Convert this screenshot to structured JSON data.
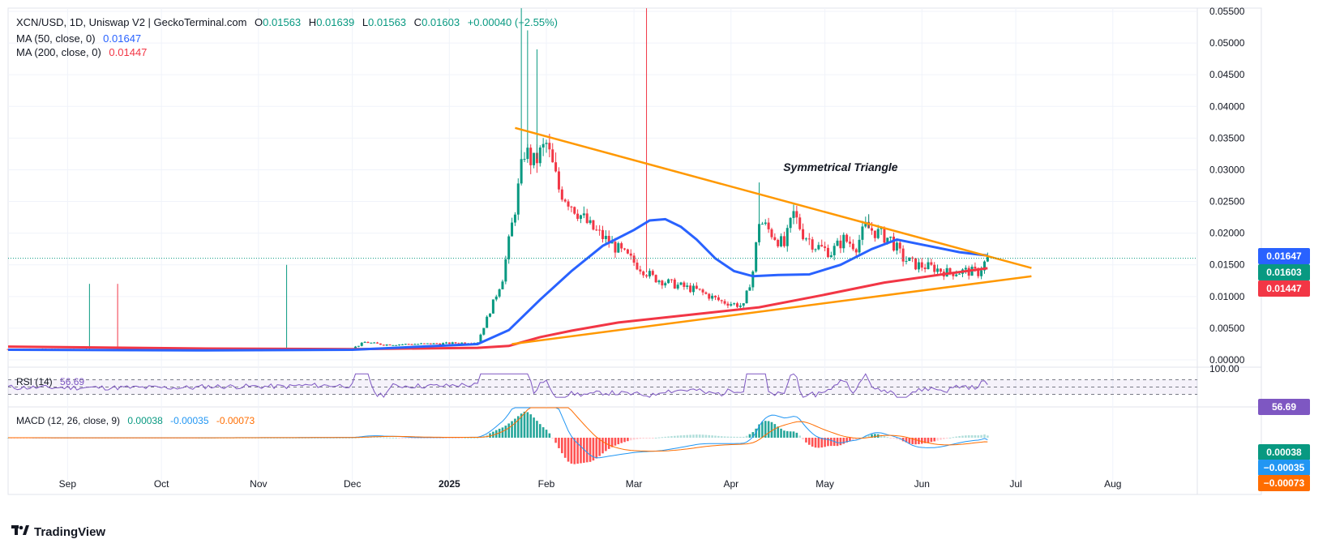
{
  "header": {
    "symbol": "XCN/USD, 1D, Uniswap V2 | GeckoTerminal.com",
    "o_label": "O",
    "o": "0.01563",
    "h_label": "H",
    "h": "0.01639",
    "l_label": "L",
    "l": "0.01563",
    "c_label": "C",
    "c": "0.01603",
    "change": "+0.00040 (+2.55%)",
    "ma50_label": "MA (50, close, 0)",
    "ma50_value": "0.01647",
    "ma200_label": "MA (200, close, 0)",
    "ma200_value": "0.01447",
    "rsi_label": "RSI (14)",
    "rsi_value": "56.69",
    "macd_label": "MACD (12, 26, close, 9)",
    "macd_hist": "0.00038",
    "macd_line": "-0.00035",
    "macd_signal": "-0.00073"
  },
  "badges": {
    "ma50": "0.01647",
    "close": "0.01603",
    "ma200": "0.01447",
    "rsi": "56.69",
    "macd_hist": "0.00038",
    "macd_line": "−0.00035",
    "macd_signal": "−0.00073",
    "rsi_top": "100.00"
  },
  "annotation": "Symmetrical Triangle",
  "brand": "TradingView",
  "colors": {
    "up": "#089981",
    "down": "#f23645",
    "ma50": "#2962ff",
    "ma200": "#f23645",
    "trendline": "#ff9800",
    "rsi": "#7e57c2",
    "macd": "#2196f3",
    "signal": "#ff6d00",
    "hist_up": "#26a69a",
    "hist_up_light": "#b2dfdb",
    "hist_down": "#ff5252",
    "hist_down_light": "#ffcdd2"
  },
  "chart_data": {
    "type": "candlestick",
    "title": "XCN/USD, 1D, Uniswap V2",
    "y_ticks": [
      "0.05500",
      "0.05000",
      "0.04500",
      "0.04000",
      "0.03500",
      "0.03000",
      "0.02500",
      "0.02000",
      "0.01500",
      "0.01000",
      "0.00500",
      "0.00000"
    ],
    "y_tick_values": [
      0.055,
      0.05,
      0.045,
      0.04,
      0.035,
      0.03,
      0.025,
      0.02,
      0.015,
      0.01,
      0.005,
      0.0
    ],
    "x_ticks": [
      {
        "label": "Sep",
        "day": 19
      },
      {
        "label": "Oct",
        "day": 49
      },
      {
        "label": "Nov",
        "day": 80
      },
      {
        "label": "Dec",
        "day": 110
      },
      {
        "label": "2025",
        "day": 141
      },
      {
        "label": "Feb",
        "day": 172
      },
      {
        "label": "Mar",
        "day": 200
      },
      {
        "label": "Apr",
        "day": 231
      },
      {
        "label": "May",
        "day": 261
      },
      {
        "label": "Jun",
        "day": 292
      },
      {
        "label": "Jul",
        "day": 322
      },
      {
        "label": "Aug",
        "day": 353
      }
    ],
    "x_domain": [
      0,
      380
    ],
    "y_domain": [
      0,
      0.0555
    ],
    "price_keypoints": [
      [
        0,
        0.0017
      ],
      [
        30,
        0.0016
      ],
      [
        60,
        0.0015
      ],
      [
        90,
        0.0016
      ],
      [
        110,
        0.0018
      ],
      [
        114,
        0.0028
      ],
      [
        120,
        0.0024
      ],
      [
        140,
        0.0026
      ],
      [
        150,
        0.0028
      ],
      [
        155,
        0.009
      ],
      [
        158,
        0.013
      ],
      [
        162,
        0.024
      ],
      [
        165,
        0.033
      ],
      [
        168,
        0.031
      ],
      [
        172,
        0.034
      ],
      [
        176,
        0.027
      ],
      [
        181,
        0.024
      ],
      [
        186,
        0.021
      ],
      [
        191,
        0.019
      ],
      [
        196,
        0.017
      ],
      [
        201,
        0.015
      ],
      [
        206,
        0.013
      ],
      [
        212,
        0.012
      ],
      [
        220,
        0.011
      ],
      [
        228,
        0.0092
      ],
      [
        235,
        0.0085
      ],
      [
        238,
        0.014
      ],
      [
        240,
        0.022
      ],
      [
        244,
        0.02
      ],
      [
        248,
        0.018
      ],
      [
        251,
        0.023
      ],
      [
        254,
        0.02
      ],
      [
        258,
        0.018
      ],
      [
        263,
        0.017
      ],
      [
        267,
        0.019
      ],
      [
        271,
        0.018
      ],
      [
        274,
        0.021
      ],
      [
        278,
        0.02
      ],
      [
        282,
        0.019
      ],
      [
        286,
        0.016
      ],
      [
        290,
        0.015
      ],
      [
        296,
        0.0145
      ],
      [
        300,
        0.0138
      ],
      [
        306,
        0.014
      ],
      [
        310,
        0.0138
      ],
      [
        313,
        0.01603
      ]
    ],
    "spikes": [
      [
        26,
        0.012
      ],
      [
        35,
        0.012
      ],
      [
        89,
        0.015
      ],
      [
        164,
        0.0555
      ],
      [
        166,
        0.052
      ],
      [
        169,
        0.049
      ],
      [
        204,
        0.0555
      ],
      [
        240,
        0.028
      ],
      [
        251,
        0.0245
      ],
      [
        275,
        0.023
      ]
    ],
    "ma50": [
      [
        0,
        0.0016
      ],
      [
        60,
        0.0015
      ],
      [
        110,
        0.0016
      ],
      [
        150,
        0.0025
      ],
      [
        160,
        0.0047
      ],
      [
        170,
        0.0095
      ],
      [
        180,
        0.014
      ],
      [
        190,
        0.018
      ],
      [
        200,
        0.0205
      ],
      [
        205,
        0.022
      ],
      [
        210,
        0.0222
      ],
      [
        215,
        0.021
      ],
      [
        220,
        0.019
      ],
      [
        226,
        0.016
      ],
      [
        232,
        0.014
      ],
      [
        238,
        0.0132
      ],
      [
        246,
        0.0134
      ],
      [
        256,
        0.0135
      ],
      [
        266,
        0.015
      ],
      [
        276,
        0.0175
      ],
      [
        284,
        0.019
      ],
      [
        294,
        0.018
      ],
      [
        304,
        0.017
      ],
      [
        313,
        0.01647
      ]
    ],
    "ma200": [
      [
        0,
        0.0021
      ],
      [
        60,
        0.0018
      ],
      [
        110,
        0.0017
      ],
      [
        150,
        0.0019
      ],
      [
        160,
        0.0022
      ],
      [
        170,
        0.0036
      ],
      [
        180,
        0.0046
      ],
      [
        195,
        0.0059
      ],
      [
        210,
        0.0067
      ],
      [
        225,
        0.0075
      ],
      [
        240,
        0.0083
      ],
      [
        260,
        0.0102
      ],
      [
        280,
        0.0122
      ],
      [
        300,
        0.0136
      ],
      [
        313,
        0.01447
      ]
    ],
    "trendlines": [
      {
        "name": "upper",
        "from": [
          162,
          0.0366
        ],
        "to": [
          327,
          0.0145
        ]
      },
      {
        "name": "lower",
        "from": [
          161,
          0.0025
        ],
        "to": [
          327,
          0.0132
        ]
      }
    ],
    "current_price": 0.01603,
    "rsi": {
      "current": 56.69,
      "levels": [
        70,
        50,
        30
      ],
      "top": 100
    },
    "macd": {
      "hist": 0.00038,
      "macd": -0.00035,
      "signal": -0.00073
    }
  }
}
